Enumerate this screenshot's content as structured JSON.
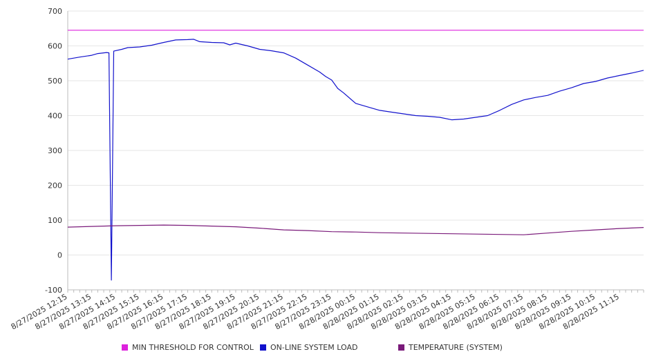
{
  "chart_data": {
    "type": "line",
    "title": "",
    "xlabel": "",
    "ylabel": "",
    "ylim": [
      -100,
      700
    ],
    "yticks": [
      -100,
      0,
      100,
      200,
      300,
      400,
      500,
      600,
      700
    ],
    "grid": true,
    "legend_position": "bottom",
    "x_start": "8/27/2025 12:15",
    "x_end": "8/28/2025 12:15",
    "x_tick_labels": [
      "8/27/2025 12:15",
      "8/27/2025 13:15",
      "8/27/2025 14:15",
      "8/27/2025 15:15",
      "8/27/2025 16:15",
      "8/27/2025 17:15",
      "8/27/2025 18:15",
      "8/27/2025 19:15",
      "8/27/2025 20:15",
      "8/27/2025 21:15",
      "8/27/2025 22:15",
      "8/27/2025 23:15",
      "8/28/2025 00:15",
      "8/28/2025 01:15",
      "8/28/2025 02:15",
      "8/28/2025 03:15",
      "8/28/2025 04:15",
      "8/28/2025 05:15",
      "8/28/2025 06:15",
      "8/28/2025 07:15",
      "8/28/2025 08:15",
      "8/28/2025 09:15",
      "8/28/2025 10:15",
      "8/28/2025 11:15"
    ],
    "series": [
      {
        "name": "MIN THRESHOLD FOR CONTROL",
        "color": "#dd22dd",
        "x": [
          "8/27/2025 12:15",
          "8/28/2025 12:15"
        ],
        "y": [
          645,
          645
        ]
      },
      {
        "name": "ON-LINE SYSTEM LOAD",
        "color": "#1111cc",
        "x": [
          "8/27/2025 12:15",
          "8/27/2025 12:45",
          "8/27/2025 13:15",
          "8/27/2025 13:30",
          "8/27/2025 13:45",
          "8/27/2025 13:52",
          "8/27/2025 13:58",
          "8/27/2025 14:04",
          "8/27/2025 14:10",
          "8/27/2025 14:30",
          "8/27/2025 14:45",
          "8/27/2025 15:15",
          "8/27/2025 15:45",
          "8/27/2025 16:15",
          "8/27/2025 16:45",
          "8/27/2025 17:15",
          "8/27/2025 17:30",
          "8/27/2025 17:45",
          "8/27/2025 18:15",
          "8/27/2025 18:45",
          "8/27/2025 19:00",
          "8/27/2025 19:15",
          "8/27/2025 19:45",
          "8/27/2025 20:15",
          "8/27/2025 20:45",
          "8/27/2025 21:15",
          "8/27/2025 21:45",
          "8/27/2025 22:15",
          "8/27/2025 22:45",
          "8/27/2025 23:00",
          "8/27/2025 23:15",
          "8/27/2025 23:30",
          "8/27/2025 23:45",
          "8/28/2025 00:15",
          "8/28/2025 00:45",
          "8/28/2025 01:15",
          "8/28/2025 01:45",
          "8/28/2025 02:15",
          "8/28/2025 02:45",
          "8/28/2025 03:15",
          "8/28/2025 03:45",
          "8/28/2025 04:15",
          "8/28/2025 04:45",
          "8/28/2025 05:15",
          "8/28/2025 05:45",
          "8/28/2025 06:15",
          "8/28/2025 06:45",
          "8/28/2025 07:15",
          "8/28/2025 07:45",
          "8/28/2025 08:15",
          "8/28/2025 08:45",
          "8/28/2025 09:15",
          "8/28/2025 09:45",
          "8/28/2025 10:15",
          "8/28/2025 10:45",
          "8/28/2025 11:15",
          "8/28/2025 11:45",
          "8/28/2025 12:15"
        ],
        "y": [
          562,
          568,
          573,
          578,
          580,
          581,
          580,
          -72,
          585,
          590,
          595,
          597,
          602,
          610,
          617,
          618,
          619,
          612,
          610,
          609,
          603,
          608,
          600,
          590,
          586,
          580,
          565,
          545,
          525,
          512,
          502,
          478,
          465,
          435,
          425,
          415,
          410,
          405,
          400,
          398,
          395,
          388,
          390,
          395,
          400,
          415,
          432,
          445,
          452,
          458,
          470,
          480,
          492,
          498,
          508,
          515,
          522,
          530
        ]
      },
      {
        "name": "TEMPERATURE (SYSTEM)",
        "color": "#7a1a7a",
        "x": [
          "8/27/2025 12:15",
          "8/27/2025 13:15",
          "8/27/2025 14:15",
          "8/27/2025 15:15",
          "8/27/2025 16:15",
          "8/27/2025 17:15",
          "8/27/2025 18:15",
          "8/27/2025 19:15",
          "8/27/2025 20:15",
          "8/27/2025 21:15",
          "8/27/2025 22:15",
          "8/27/2025 23:15",
          "8/28/2025 00:15",
          "8/28/2025 01:15",
          "8/28/2025 02:15",
          "8/28/2025 03:15",
          "8/28/2025 04:15",
          "8/28/2025 05:15",
          "8/28/2025 06:15",
          "8/28/2025 07:15",
          "8/28/2025 08:15",
          "8/28/2025 09:15",
          "8/28/2025 10:15",
          "8/28/2025 11:15",
          "8/28/2025 12:15"
        ],
        "y": [
          80,
          82,
          84,
          85,
          86,
          85,
          83,
          81,
          77,
          72,
          70,
          67,
          66,
          64,
          63,
          62,
          61,
          60,
          59,
          58,
          63,
          68,
          72,
          76,
          79
        ]
      }
    ]
  }
}
